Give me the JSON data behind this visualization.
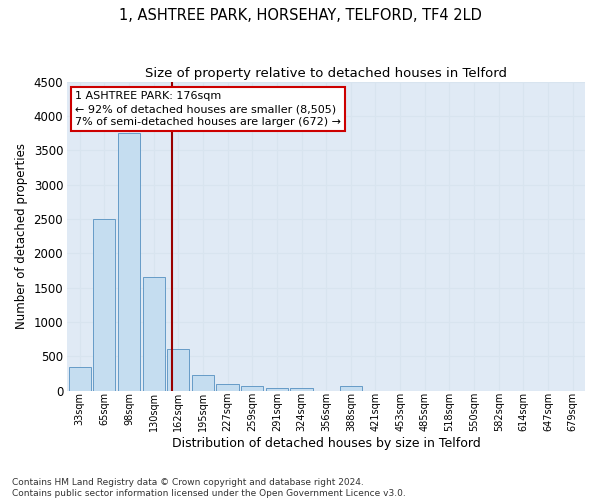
{
  "title1": "1, ASHTREE PARK, HORSEHAY, TELFORD, TF4 2LD",
  "title2": "Size of property relative to detached houses in Telford",
  "xlabel": "Distribution of detached houses by size in Telford",
  "ylabel": "Number of detached properties",
  "footnote": "Contains HM Land Registry data © Crown copyright and database right 2024.\nContains public sector information licensed under the Open Government Licence v3.0.",
  "categories": [
    "33sqm",
    "65sqm",
    "98sqm",
    "130sqm",
    "162sqm",
    "195sqm",
    "227sqm",
    "259sqm",
    "291sqm",
    "324sqm",
    "356sqm",
    "388sqm",
    "421sqm",
    "453sqm",
    "485sqm",
    "518sqm",
    "550sqm",
    "582sqm",
    "614sqm",
    "647sqm",
    "679sqm"
  ],
  "values": [
    350,
    2500,
    3750,
    1650,
    600,
    220,
    100,
    60,
    40,
    40,
    0,
    60,
    0,
    0,
    0,
    0,
    0,
    0,
    0,
    0,
    0
  ],
  "bar_color": "#c5ddf0",
  "bar_edge_color": "#5590c0",
  "ylim": [
    0,
    4500
  ],
  "yticks": [
    0,
    500,
    1000,
    1500,
    2000,
    2500,
    3000,
    3500,
    4000,
    4500
  ],
  "vline_x_index": 3.73,
  "vline_color": "#990000",
  "annotation_text": "1 ASHTREE PARK: 176sqm\n← 92% of detached houses are smaller (8,505)\n7% of semi-detached houses are larger (672) →",
  "annotation_box_color": "#cc0000",
  "background_color": "#e0eaf5",
  "grid_color": "#d8e4ef",
  "title_fontsize": 10.5,
  "subtitle_fontsize": 9.5,
  "annot_fontsize": 8.0
}
